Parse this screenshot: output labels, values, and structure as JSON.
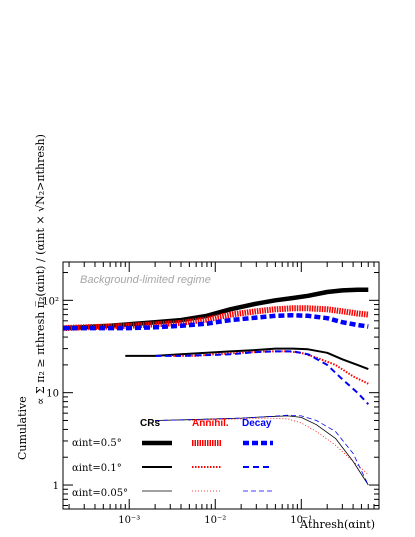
{
  "chart_data": {
    "type": "line",
    "x_scale": "log",
    "y_scale": "log",
    "xlim": [
      0.00017,
      0.8
    ],
    "ylim": [
      0.55,
      260
    ],
    "x_ticks": [
      0.001,
      0.01,
      0.1
    ],
    "x_tick_labels": [
      "10⁻³",
      "10⁻²",
      "10⁻¹"
    ],
    "y_ticks": [
      1,
      10,
      100
    ],
    "y_tick_labels": [
      "1",
      "10",
      "10²"
    ],
    "xlabel": "A̅thresh(αint)",
    "ylabel_left": "Cumulative",
    "ylabel_right": "∝ Σ π₂ ≥ πthresh  π̅₂(αint) / (αint × √N₂>πthresh)",
    "annotation": "Background-limited regime",
    "grid": false,
    "legend": {
      "placement": "bottom-left",
      "columns": [
        "CRs",
        "Annihil.",
        "Decay"
      ],
      "column_colors": [
        "#000000",
        "#ff0000",
        "#0000ff"
      ],
      "rows": [
        "αint=0.5°",
        "αint=0.1°",
        "αint=0.05°"
      ]
    },
    "series": [
      {
        "group": "CRs",
        "row": 0,
        "color": "#000000",
        "style": "solid",
        "width": 4.5,
        "x": [
          0.00017,
          0.0003,
          0.0006,
          0.001,
          0.002,
          0.004,
          0.008,
          0.015,
          0.03,
          0.05,
          0.08,
          0.12,
          0.2,
          0.3,
          0.45,
          0.6
        ],
        "y": [
          50,
          51,
          53,
          55,
          58,
          61,
          68,
          80,
          92,
          100,
          106,
          112,
          123,
          128,
          130,
          130
        ]
      },
      {
        "group": "Annihil.",
        "row": 0,
        "color": "#ff0000",
        "style": "dense",
        "width": 6,
        "x": [
          0.00017,
          0.0003,
          0.0006,
          0.001,
          0.002,
          0.004,
          0.008,
          0.015,
          0.03,
          0.05,
          0.08,
          0.12,
          0.2,
          0.3,
          0.45,
          0.6
        ],
        "y": [
          50,
          51,
          52,
          53,
          55,
          57,
          62,
          70,
          76,
          80,
          82,
          82,
          80,
          76,
          72,
          70
        ]
      },
      {
        "group": "Decay",
        "row": 0,
        "color": "#0000ff",
        "style": "dashed",
        "width": 4.5,
        "x": [
          0.00017,
          0.0003,
          0.0006,
          0.001,
          0.002,
          0.004,
          0.008,
          0.015,
          0.03,
          0.05,
          0.08,
          0.12,
          0.2,
          0.3,
          0.45,
          0.6
        ],
        "y": [
          50,
          50,
          50,
          50,
          51,
          53,
          56,
          61,
          65,
          68,
          69,
          68,
          64,
          58,
          54,
          52
        ]
      },
      {
        "group": "CRs",
        "row": 1,
        "color": "#000000",
        "style": "solid",
        "width": 2,
        "x": [
          0.0009,
          0.002,
          0.004,
          0.008,
          0.015,
          0.03,
          0.05,
          0.08,
          0.12,
          0.2,
          0.3,
          0.45,
          0.6
        ],
        "y": [
          25,
          25,
          26,
          27,
          28,
          29,
          30,
          30,
          29.5,
          27,
          23,
          20,
          18
        ]
      },
      {
        "group": "Annihil.",
        "row": 1,
        "color": "#ff0000",
        "style": "dense",
        "width": 2,
        "x": [
          0.003,
          0.006,
          0.01,
          0.02,
          0.04,
          0.07,
          0.1,
          0.15,
          0.25,
          0.4,
          0.6
        ],
        "y": [
          25,
          25,
          26,
          27,
          28,
          28,
          27,
          24,
          20,
          15,
          12.5
        ]
      },
      {
        "group": "Decay",
        "row": 1,
        "color": "#0000ff",
        "style": "dashed",
        "width": 2,
        "x": [
          0.002,
          0.004,
          0.008,
          0.015,
          0.03,
          0.05,
          0.08,
          0.12,
          0.2,
          0.3,
          0.45,
          0.6
        ],
        "y": [
          25,
          25,
          25.5,
          26,
          27.5,
          28,
          28,
          26,
          20,
          14,
          10,
          7.5
        ]
      },
      {
        "group": "CRs",
        "row": 2,
        "color": "#000000",
        "style": "solid",
        "width": 0.8,
        "x": [
          0.002,
          0.005,
          0.01,
          0.02,
          0.04,
          0.07,
          0.1,
          0.15,
          0.25,
          0.4,
          0.6
        ],
        "y": [
          5.0,
          5.1,
          5.2,
          5.3,
          5.5,
          5.6,
          5.4,
          4.5,
          3.2,
          1.8,
          1.0
        ]
      },
      {
        "group": "Annihil.",
        "row": 2,
        "color": "#ff0000",
        "style": "dotted",
        "width": 0.8,
        "x": [
          0.005,
          0.01,
          0.02,
          0.04,
          0.07,
          0.1,
          0.15,
          0.25,
          0.4,
          0.6
        ],
        "y": [
          5.0,
          5.1,
          5.2,
          5.3,
          5.2,
          4.7,
          3.8,
          2.7,
          1.8,
          1.3
        ]
      },
      {
        "group": "Decay",
        "row": 2,
        "color": "#0000ff",
        "style": "dashed",
        "width": 0.8,
        "x": [
          0.002,
          0.005,
          0.01,
          0.02,
          0.04,
          0.07,
          0.1,
          0.15,
          0.25,
          0.4,
          0.6
        ],
        "y": [
          5.0,
          5.1,
          5.2,
          5.3,
          5.5,
          5.7,
          5.6,
          5.0,
          3.8,
          2.2,
          1.0
        ]
      }
    ]
  }
}
